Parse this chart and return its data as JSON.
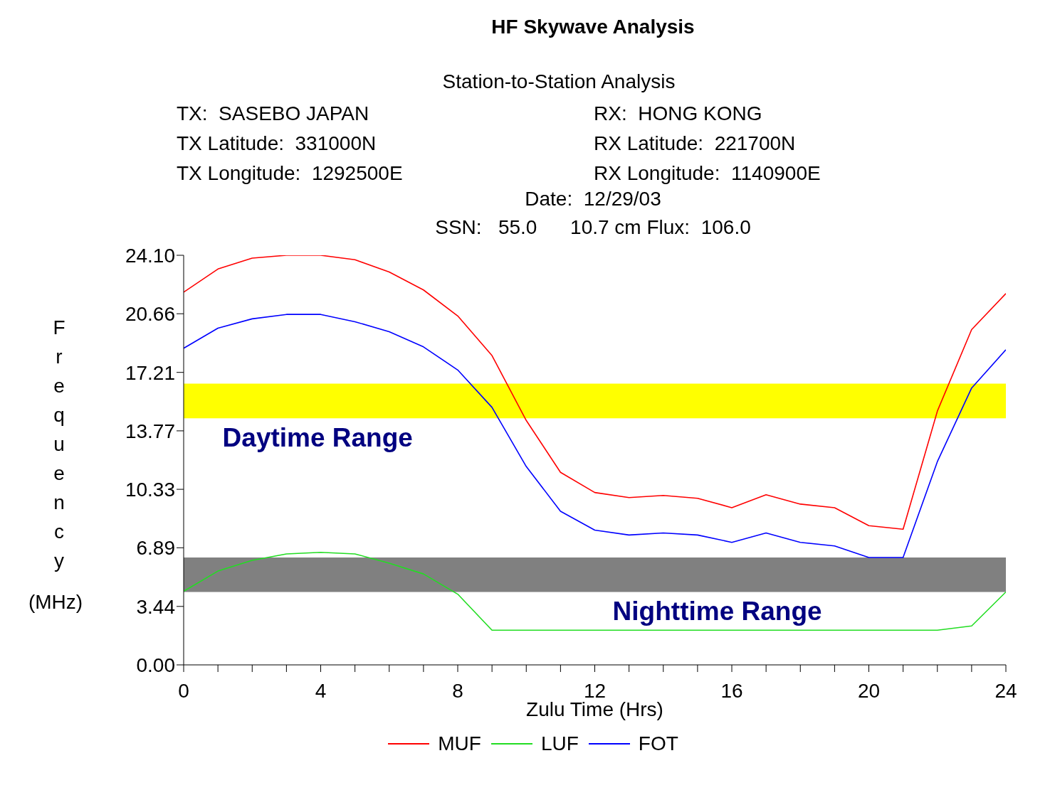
{
  "chart_data": {
    "type": "line",
    "title": "HF Skywave Analysis",
    "subtitle": "Station-to-Station Analysis",
    "annotations": [
      "TX:  SASEBO JAPAN",
      "RX:  HONG KONG",
      "TX Latitude:  331000N",
      "RX Latitude:  221700N",
      "TX Longitude:  1292500E",
      "RX Longitude:  1140900E",
      "Date:  12/29/03",
      "SSN:   55.0      10.7 cm Flux:  106.0"
    ],
    "xlabel": "Zulu Time (Hrs)",
    "ylabel": "Frequency (MHz)",
    "x": [
      0,
      1,
      2,
      3,
      4,
      5,
      6,
      7,
      8,
      9,
      10,
      11,
      12,
      13,
      14,
      15,
      16,
      17,
      18,
      19,
      20,
      21,
      22,
      23,
      24
    ],
    "series": [
      {
        "name": "MUF",
        "color": "#ff0000",
        "values": [
          21.93,
          23.29,
          23.93,
          24.1,
          24.1,
          23.84,
          23.12,
          22.06,
          20.53,
          18.2,
          14.38,
          11.33,
          10.14,
          9.84,
          9.97,
          9.8,
          9.25,
          10.01,
          9.46,
          9.25,
          8.19,
          7.98,
          14.93,
          19.73,
          21.85
        ]
      },
      {
        "name": "LUF",
        "color": "#22dd22",
        "values": [
          4.33,
          5.52,
          6.15,
          6.53,
          6.62,
          6.53,
          5.98,
          5.35,
          4.16,
          2.04,
          2.04,
          2.04,
          2.04,
          2.04,
          2.04,
          2.04,
          2.04,
          2.04,
          2.04,
          2.04,
          2.04,
          2.04,
          2.04,
          2.29,
          4.29
        ]
      },
      {
        "name": "FOT",
        "color": "#0000ff",
        "values": [
          18.63,
          19.81,
          20.36,
          20.62,
          20.62,
          20.19,
          19.6,
          18.71,
          17.35,
          15.15,
          11.67,
          9.04,
          7.93,
          7.64,
          7.76,
          7.64,
          7.21,
          7.76,
          7.21,
          7.0,
          6.32,
          6.32,
          11.96,
          16.29,
          18.54
        ]
      }
    ],
    "bands": [
      {
        "axis": "y",
        "from": 14.51,
        "to": 16.55,
        "label": "Daytime Range",
        "color": "#ffff00"
      },
      {
        "axis": "y",
        "from": 4.29,
        "to": 6.32,
        "label": "Nighttime Range",
        "color": "#808080"
      }
    ],
    "xlim": [
      0,
      24
    ],
    "xticks": [
      0,
      {
        "value": 1,
        "label": null
      },
      {
        "value": 2,
        "label": null
      },
      {
        "value": 3,
        "label": null
      },
      4,
      {
        "value": 5,
        "label": null
      },
      {
        "value": 6,
        "label": null
      },
      {
        "value": 7,
        "label": null
      },
      8,
      {
        "value": 9,
        "label": null
      },
      {
        "value": 10,
        "label": null
      },
      {
        "value": 11,
        "label": null
      },
      12,
      {
        "value": 13,
        "label": null
      },
      {
        "value": 14,
        "label": null
      },
      {
        "value": 15,
        "label": null
      },
      16,
      {
        "value": 17,
        "label": null
      },
      {
        "value": 18,
        "label": null
      },
      {
        "value": 19,
        "label": null
      },
      20,
      {
        "value": 21,
        "label": null
      },
      {
        "value": 22,
        "label": null
      },
      {
        "value": 23,
        "label": null
      },
      24
    ],
    "ylim": [
      0,
      24.1
    ],
    "yticks": [
      {
        "value": 0,
        "label": "0.00"
      },
      {
        "value": 3.44,
        "label": "3.44"
      },
      {
        "value": 6.89,
        "label": "6.89"
      },
      {
        "value": 10.33,
        "label": "10.33"
      },
      {
        "value": 13.77,
        "label": "13.77"
      },
      {
        "value": 17.21,
        "label": "17.21"
      },
      {
        "value": 20.66,
        "label": "20.66"
      },
      {
        "value": 24.1,
        "label": "24.10"
      }
    ],
    "grid": false,
    "legend": "bottom",
    "marker": "none",
    "line_style": "solid"
  }
}
